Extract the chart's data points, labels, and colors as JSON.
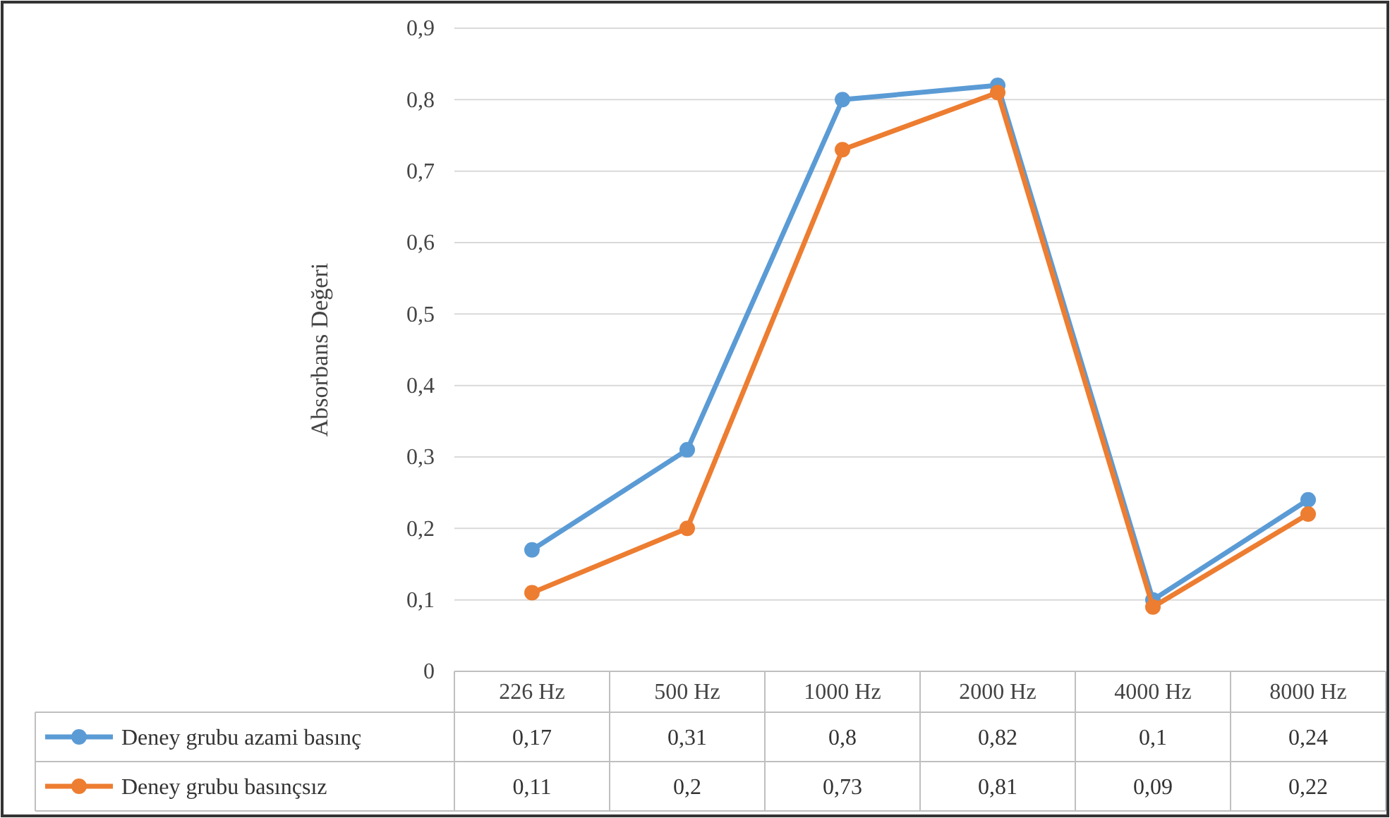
{
  "chart_data": {
    "type": "line",
    "ylabel": "Absorbans Değeri",
    "categories": [
      "226 Hz",
      "500 Hz",
      "1000 Hz",
      "2000 Hz",
      "4000 Hz",
      "8000 Hz"
    ],
    "series": [
      {
        "name": "Deney grubu azami basınç",
        "color": "#5b9bd5",
        "values": [
          0.17,
          0.31,
          0.8,
          0.82,
          0.1,
          0.24
        ],
        "value_labels": [
          "0,17",
          "0,31",
          "0,8",
          "0,82",
          "0,1",
          "0,24"
        ]
      },
      {
        "name": "Deney grubu basınçsız",
        "color": "#ed7d31",
        "values": [
          0.11,
          0.2,
          0.73,
          0.81,
          0.09,
          0.22
        ],
        "value_labels": [
          "0,11",
          "0,2",
          "0,73",
          "0,81",
          "0,09",
          "0,22"
        ]
      }
    ],
    "ylim": [
      0,
      0.9
    ],
    "yticks": [
      0,
      {
        "value": 0.1,
        "label": "0,1"
      },
      {
        "value": 0.2,
        "label": "0,2"
      },
      {
        "value": 0.3,
        "label": "0,3"
      },
      {
        "value": 0.4,
        "label": "0,4"
      },
      {
        "value": 0.5,
        "label": "0,5"
      },
      {
        "value": 0.6,
        "label": "0,6"
      },
      {
        "value": 0.7,
        "label": "0,7"
      },
      {
        "value": 0.8,
        "label": "0,8"
      },
      {
        "value": 0.9,
        "label": "0,9"
      }
    ],
    "grid": "y",
    "legend": "bottom left",
    "marker": "circle",
    "line_style": "solid"
  }
}
